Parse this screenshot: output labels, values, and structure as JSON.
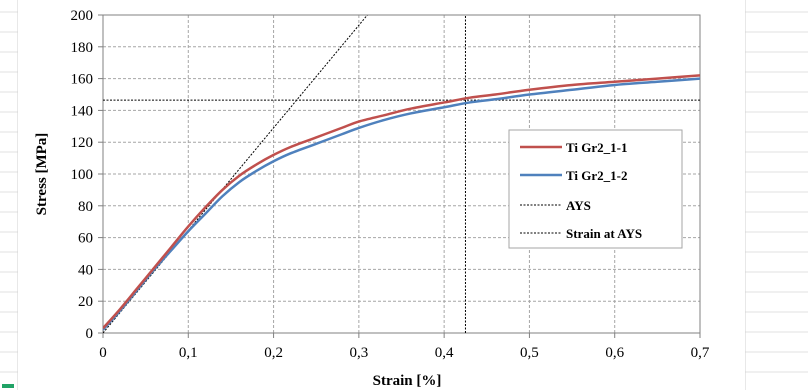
{
  "chart_data": {
    "type": "line",
    "xlabel": "Strain [%]",
    "ylabel": "Stress [MPa]",
    "xlim": [
      0,
      0.7
    ],
    "ylim": [
      0,
      200
    ],
    "x_ticks": [
      "0",
      "0,1",
      "0,2",
      "0,3",
      "0,4",
      "0,5",
      "0,6",
      "0,7"
    ],
    "y_ticks": [
      "0",
      "20",
      "40",
      "60",
      "80",
      "100",
      "120",
      "140",
      "160",
      "180",
      "200"
    ],
    "grid": true,
    "legend_position": "right",
    "series": [
      {
        "name": "Ti Gr2_1-1",
        "color": "#c0504d",
        "style": "solid",
        "x": [
          0,
          0.02,
          0.04,
          0.06,
          0.08,
          0.1,
          0.12,
          0.14,
          0.16,
          0.18,
          0.2,
          0.22,
          0.25,
          0.28,
          0.3,
          0.33,
          0.36,
          0.4,
          0.43,
          0.46,
          0.5,
          0.55,
          0.6,
          0.65,
          0.7
        ],
        "y": [
          3,
          15,
          28,
          41,
          54,
          67,
          79,
          90,
          99,
          106,
          112,
          117,
          123,
          129,
          133,
          137,
          141,
          145,
          148,
          150,
          153,
          156,
          158,
          160,
          162
        ]
      },
      {
        "name": "Ti Gr2_1-2",
        "color": "#4f81bd",
        "style": "solid",
        "x": [
          0,
          0.02,
          0.04,
          0.06,
          0.08,
          0.1,
          0.12,
          0.14,
          0.16,
          0.18,
          0.2,
          0.22,
          0.25,
          0.28,
          0.3,
          0.33,
          0.36,
          0.4,
          0.43,
          0.46,
          0.5,
          0.55,
          0.6,
          0.65,
          0.7
        ],
        "y": [
          2,
          14,
          27,
          40,
          52,
          64,
          75,
          86,
          95,
          102,
          108,
          113,
          119,
          125,
          129,
          134,
          138,
          142,
          145,
          147,
          150,
          153,
          156,
          158,
          160
        ]
      },
      {
        "name": "AYS",
        "color": "#000000",
        "style": "dashed",
        "x": [
          0,
          0.7
        ],
        "y": [
          146.5,
          146.5
        ]
      },
      {
        "name": "Strain at AYS",
        "color": "#000000",
        "style": "dashed",
        "x": [
          0.425,
          0.425
        ],
        "y": [
          0,
          200
        ]
      },
      {
        "name": "",
        "color": "#000000",
        "style": "dashed",
        "x": [
          0,
          0.31
        ],
        "y": [
          0,
          200
        ]
      }
    ]
  }
}
